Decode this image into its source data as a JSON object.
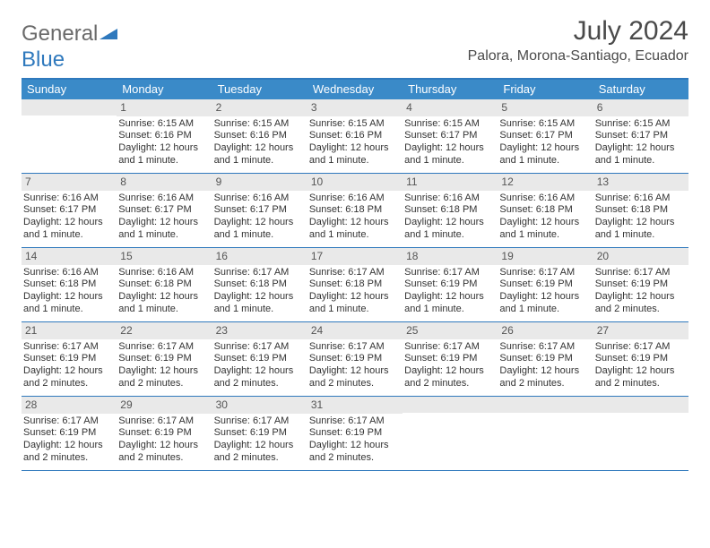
{
  "logo": {
    "text1": "General",
    "text2": "Blue"
  },
  "month_title": "July 2024",
  "location": "Palora, Morona-Santiago, Ecuador",
  "colors": {
    "header_bar": "#3a8ac8",
    "border": "#2f79bd",
    "daynum_bg": "#e9e9e9",
    "text": "#333333",
    "title_text": "#4a4a4a"
  },
  "daysOfWeek": [
    "Sunday",
    "Monday",
    "Tuesday",
    "Wednesday",
    "Thursday",
    "Friday",
    "Saturday"
  ],
  "weeks": [
    [
      {
        "day": "",
        "sunrise": "",
        "sunset": "",
        "daylight": ""
      },
      {
        "day": "1",
        "sunrise": "Sunrise: 6:15 AM",
        "sunset": "Sunset: 6:16 PM",
        "daylight": "Daylight: 12 hours and 1 minute."
      },
      {
        "day": "2",
        "sunrise": "Sunrise: 6:15 AM",
        "sunset": "Sunset: 6:16 PM",
        "daylight": "Daylight: 12 hours and 1 minute."
      },
      {
        "day": "3",
        "sunrise": "Sunrise: 6:15 AM",
        "sunset": "Sunset: 6:16 PM",
        "daylight": "Daylight: 12 hours and 1 minute."
      },
      {
        "day": "4",
        "sunrise": "Sunrise: 6:15 AM",
        "sunset": "Sunset: 6:17 PM",
        "daylight": "Daylight: 12 hours and 1 minute."
      },
      {
        "day": "5",
        "sunrise": "Sunrise: 6:15 AM",
        "sunset": "Sunset: 6:17 PM",
        "daylight": "Daylight: 12 hours and 1 minute."
      },
      {
        "day": "6",
        "sunrise": "Sunrise: 6:15 AM",
        "sunset": "Sunset: 6:17 PM",
        "daylight": "Daylight: 12 hours and 1 minute."
      }
    ],
    [
      {
        "day": "7",
        "sunrise": "Sunrise: 6:16 AM",
        "sunset": "Sunset: 6:17 PM",
        "daylight": "Daylight: 12 hours and 1 minute."
      },
      {
        "day": "8",
        "sunrise": "Sunrise: 6:16 AM",
        "sunset": "Sunset: 6:17 PM",
        "daylight": "Daylight: 12 hours and 1 minute."
      },
      {
        "day": "9",
        "sunrise": "Sunrise: 6:16 AM",
        "sunset": "Sunset: 6:17 PM",
        "daylight": "Daylight: 12 hours and 1 minute."
      },
      {
        "day": "10",
        "sunrise": "Sunrise: 6:16 AM",
        "sunset": "Sunset: 6:18 PM",
        "daylight": "Daylight: 12 hours and 1 minute."
      },
      {
        "day": "11",
        "sunrise": "Sunrise: 6:16 AM",
        "sunset": "Sunset: 6:18 PM",
        "daylight": "Daylight: 12 hours and 1 minute."
      },
      {
        "day": "12",
        "sunrise": "Sunrise: 6:16 AM",
        "sunset": "Sunset: 6:18 PM",
        "daylight": "Daylight: 12 hours and 1 minute."
      },
      {
        "day": "13",
        "sunrise": "Sunrise: 6:16 AM",
        "sunset": "Sunset: 6:18 PM",
        "daylight": "Daylight: 12 hours and 1 minute."
      }
    ],
    [
      {
        "day": "14",
        "sunrise": "Sunrise: 6:16 AM",
        "sunset": "Sunset: 6:18 PM",
        "daylight": "Daylight: 12 hours and 1 minute."
      },
      {
        "day": "15",
        "sunrise": "Sunrise: 6:16 AM",
        "sunset": "Sunset: 6:18 PM",
        "daylight": "Daylight: 12 hours and 1 minute."
      },
      {
        "day": "16",
        "sunrise": "Sunrise: 6:17 AM",
        "sunset": "Sunset: 6:18 PM",
        "daylight": "Daylight: 12 hours and 1 minute."
      },
      {
        "day": "17",
        "sunrise": "Sunrise: 6:17 AM",
        "sunset": "Sunset: 6:18 PM",
        "daylight": "Daylight: 12 hours and 1 minute."
      },
      {
        "day": "18",
        "sunrise": "Sunrise: 6:17 AM",
        "sunset": "Sunset: 6:19 PM",
        "daylight": "Daylight: 12 hours and 1 minute."
      },
      {
        "day": "19",
        "sunrise": "Sunrise: 6:17 AM",
        "sunset": "Sunset: 6:19 PM",
        "daylight": "Daylight: 12 hours and 1 minute."
      },
      {
        "day": "20",
        "sunrise": "Sunrise: 6:17 AM",
        "sunset": "Sunset: 6:19 PM",
        "daylight": "Daylight: 12 hours and 2 minutes."
      }
    ],
    [
      {
        "day": "21",
        "sunrise": "Sunrise: 6:17 AM",
        "sunset": "Sunset: 6:19 PM",
        "daylight": "Daylight: 12 hours and 2 minutes."
      },
      {
        "day": "22",
        "sunrise": "Sunrise: 6:17 AM",
        "sunset": "Sunset: 6:19 PM",
        "daylight": "Daylight: 12 hours and 2 minutes."
      },
      {
        "day": "23",
        "sunrise": "Sunrise: 6:17 AM",
        "sunset": "Sunset: 6:19 PM",
        "daylight": "Daylight: 12 hours and 2 minutes."
      },
      {
        "day": "24",
        "sunrise": "Sunrise: 6:17 AM",
        "sunset": "Sunset: 6:19 PM",
        "daylight": "Daylight: 12 hours and 2 minutes."
      },
      {
        "day": "25",
        "sunrise": "Sunrise: 6:17 AM",
        "sunset": "Sunset: 6:19 PM",
        "daylight": "Daylight: 12 hours and 2 minutes."
      },
      {
        "day": "26",
        "sunrise": "Sunrise: 6:17 AM",
        "sunset": "Sunset: 6:19 PM",
        "daylight": "Daylight: 12 hours and 2 minutes."
      },
      {
        "day": "27",
        "sunrise": "Sunrise: 6:17 AM",
        "sunset": "Sunset: 6:19 PM",
        "daylight": "Daylight: 12 hours and 2 minutes."
      }
    ],
    [
      {
        "day": "28",
        "sunrise": "Sunrise: 6:17 AM",
        "sunset": "Sunset: 6:19 PM",
        "daylight": "Daylight: 12 hours and 2 minutes."
      },
      {
        "day": "29",
        "sunrise": "Sunrise: 6:17 AM",
        "sunset": "Sunset: 6:19 PM",
        "daylight": "Daylight: 12 hours and 2 minutes."
      },
      {
        "day": "30",
        "sunrise": "Sunrise: 6:17 AM",
        "sunset": "Sunset: 6:19 PM",
        "daylight": "Daylight: 12 hours and 2 minutes."
      },
      {
        "day": "31",
        "sunrise": "Sunrise: 6:17 AM",
        "sunset": "Sunset: 6:19 PM",
        "daylight": "Daylight: 12 hours and 2 minutes."
      },
      {
        "day": "",
        "sunrise": "",
        "sunset": "",
        "daylight": ""
      },
      {
        "day": "",
        "sunrise": "",
        "sunset": "",
        "daylight": ""
      },
      {
        "day": "",
        "sunrise": "",
        "sunset": "",
        "daylight": ""
      }
    ]
  ]
}
